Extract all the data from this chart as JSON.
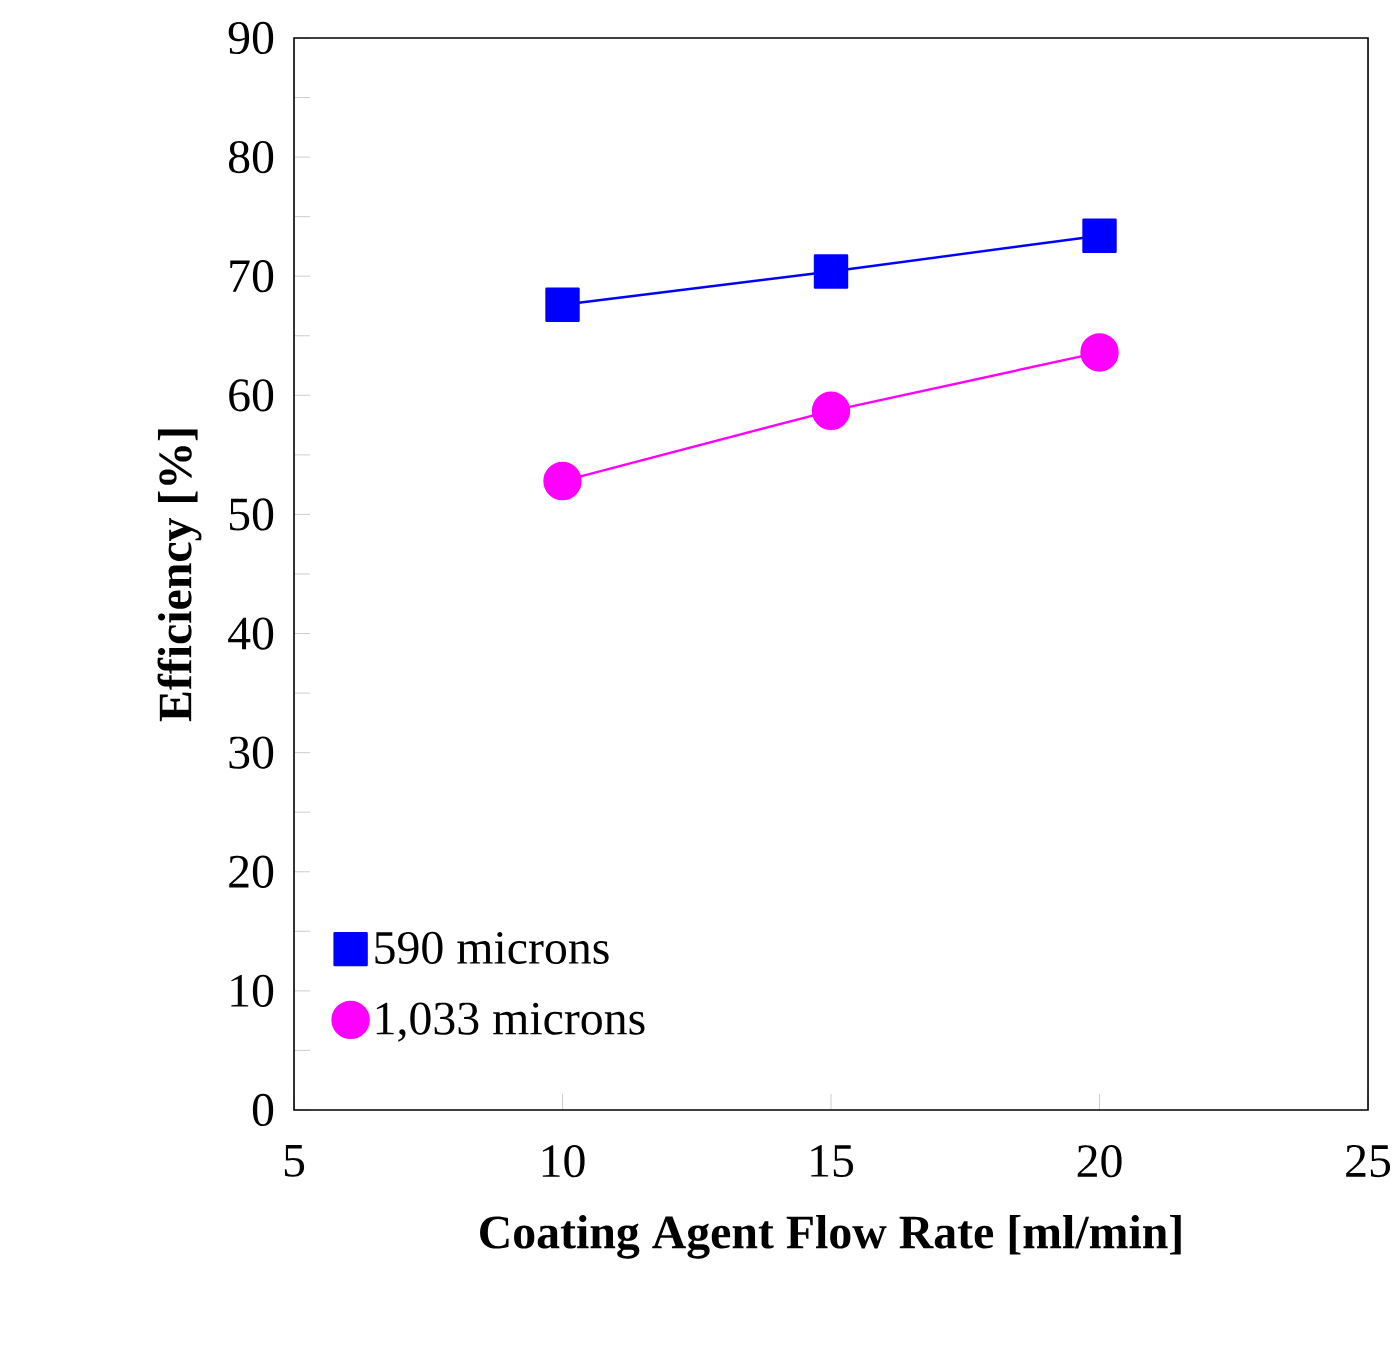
{
  "chart_data": {
    "type": "line",
    "xlabel": "Coating Agent Flow Rate [ml/min]",
    "ylabel": "Efficiency [%]",
    "x": [
      10,
      15,
      20
    ],
    "series": [
      {
        "name": "590 microns",
        "color": "#0000ff",
        "values": [
          67.6,
          70.4,
          73.4
        ],
        "marker": "square"
      },
      {
        "name": "1,033 microns",
        "color": "#ff00ff",
        "values": [
          52.8,
          58.7,
          63.6
        ],
        "marker": "circle"
      }
    ],
    "xlim": [
      5,
      25
    ],
    "ylim": [
      0,
      90
    ],
    "xticks": [
      5,
      10,
      15,
      20,
      25
    ],
    "yticks": [
      0,
      10,
      20,
      30,
      40,
      50,
      60,
      70,
      80,
      90
    ],
    "grid": false,
    "legend": "bottom left",
    "line_style": "solid"
  }
}
